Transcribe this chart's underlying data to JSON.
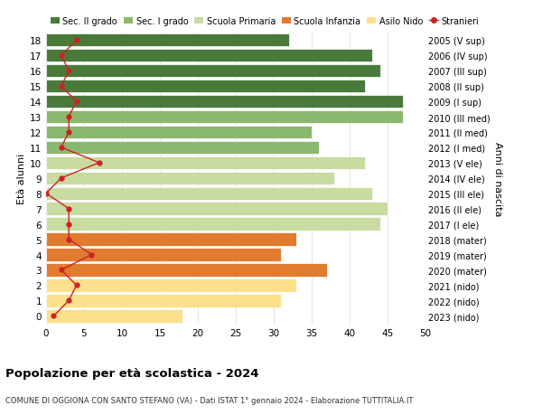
{
  "ages": [
    0,
    1,
    2,
    3,
    4,
    5,
    6,
    7,
    8,
    9,
    10,
    11,
    12,
    13,
    14,
    15,
    16,
    17,
    18
  ],
  "year_labels": [
    "2023 (nido)",
    "2022 (nido)",
    "2021 (nido)",
    "2020 (mater)",
    "2019 (mater)",
    "2018 (mater)",
    "2017 (I ele)",
    "2016 (II ele)",
    "2015 (III ele)",
    "2014 (IV ele)",
    "2013 (V ele)",
    "2012 (I med)",
    "2011 (II med)",
    "2010 (III med)",
    "2009 (I sup)",
    "2008 (II sup)",
    "2007 (III sup)",
    "2006 (IV sup)",
    "2005 (V sup)"
  ],
  "bar_values": [
    18,
    31,
    33,
    37,
    31,
    33,
    44,
    45,
    43,
    38,
    42,
    36,
    35,
    47,
    47,
    42,
    44,
    43,
    32
  ],
  "bar_colors": [
    "#fce08a",
    "#fce08a",
    "#fce08a",
    "#e07b30",
    "#e07b30",
    "#e07b30",
    "#c8dba0",
    "#c8dba0",
    "#c8dba0",
    "#c8dba0",
    "#c8dba0",
    "#8ab86e",
    "#8ab86e",
    "#8ab86e",
    "#4a7a3a",
    "#4a7a3a",
    "#4a7a3a",
    "#4a7a3a",
    "#4a7a3a"
  ],
  "stranieri_values": [
    1,
    3,
    4,
    2,
    6,
    3,
    3,
    3,
    0,
    2,
    7,
    2,
    3,
    3,
    4,
    2,
    3,
    2,
    4
  ],
  "legend_labels": [
    "Sec. II grado",
    "Sec. I grado",
    "Scuola Primaria",
    "Scuola Infanzia",
    "Asilo Nido",
    "Stranieri"
  ],
  "legend_colors": [
    "#4a7a3a",
    "#8ab86e",
    "#c8dba0",
    "#e07b30",
    "#fce08a",
    "#cc2222"
  ],
  "title": "Popolazione per età scolastica - 2024",
  "subtitle": "COMUNE DI OGGIONA CON SANTO STEFANO (VA) - Dati ISTAT 1° gennaio 2024 - Elaborazione TUTTITALIA.IT",
  "xlabel_left": "Età alunni",
  "ylabel_right": "Anni di nascita",
  "xlim": [
    0,
    50
  ],
  "background_color": "#ffffff",
  "bar_height": 0.85,
  "grid_color": "#dddddd"
}
